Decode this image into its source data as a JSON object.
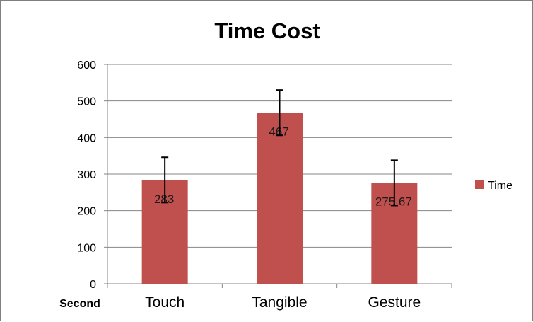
{
  "chart_data": {
    "type": "bar",
    "title": "Time Cost",
    "ylabel": "Second",
    "xlabel": "",
    "categories": [
      "Touch",
      "Tangible",
      "Gesture"
    ],
    "series": [
      {
        "name": "Time",
        "values": [
          283,
          467,
          275.67
        ],
        "data_labels": [
          "283",
          "467",
          "275,67"
        ],
        "error_low": [
          222,
          406,
          214
        ],
        "error_high": [
          346,
          530,
          338
        ],
        "color": "#c0504d"
      }
    ],
    "ylim": [
      0,
      600
    ],
    "yticks": [
      0,
      100,
      200,
      300,
      400,
      500,
      600
    ],
    "grid": true,
    "legend": "right"
  }
}
